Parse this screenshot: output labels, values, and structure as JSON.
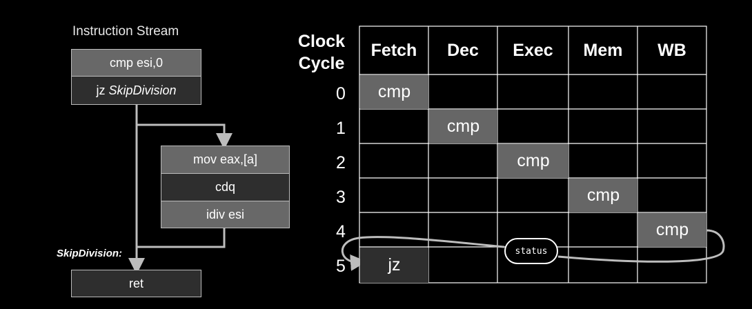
{
  "stream": {
    "title": "Instruction Stream",
    "block1": [
      "cmp esi,0",
      "jz SkipDivision"
    ],
    "block1_jz_prefix": "jz ",
    "block1_jz_target": "SkipDivision",
    "block2": [
      "mov eax,[a]",
      "cdq",
      "idiv esi"
    ],
    "skip_label": "SkipDivision:",
    "ret": "ret"
  },
  "pipeline": {
    "clock_label": [
      "Clock",
      "Cycle"
    ],
    "stages": [
      "Fetch",
      "Dec",
      "Exec",
      "Mem",
      "WB"
    ],
    "cycles": [
      "0",
      "1",
      "2",
      "3",
      "4",
      "5"
    ],
    "cmp": "cmp",
    "jz": "jz",
    "status": "status"
  },
  "colors": {
    "background": "#000000",
    "cell_fill": "#666666",
    "cell_dark": "#2e2e2e",
    "line": "#bdbdbd"
  }
}
